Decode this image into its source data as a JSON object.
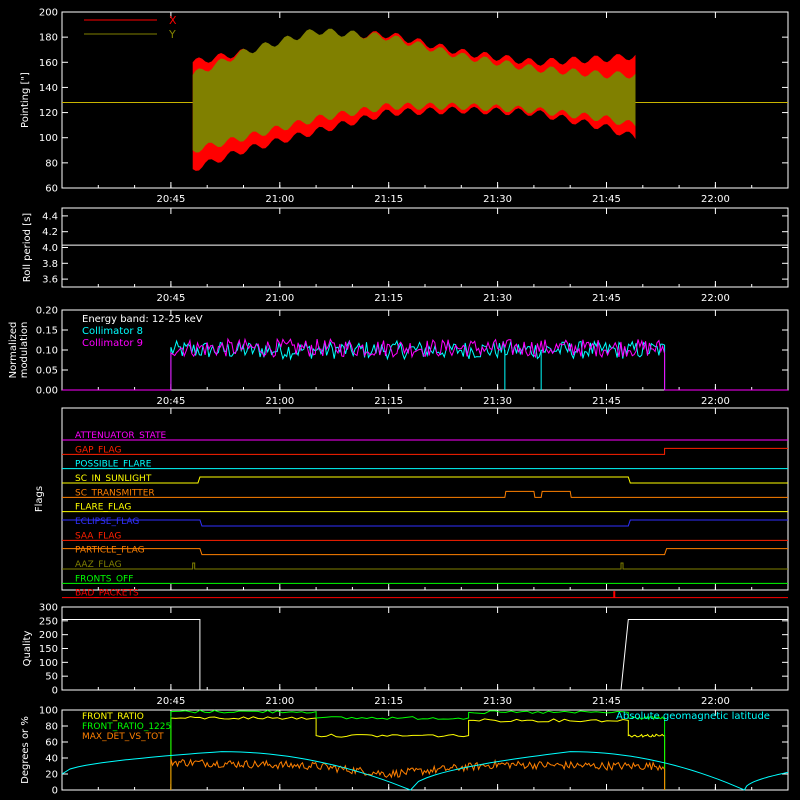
{
  "chart_data": [
    {
      "type": "area",
      "ylabel": "Pointing [\"]",
      "ylim": [
        60,
        200
      ],
      "yticks": [
        60,
        80,
        100,
        120,
        140,
        160,
        180,
        200
      ],
      "xticks": [
        "20:45",
        "21:00",
        "21:15",
        "21:30",
        "21:45",
        "22:00"
      ],
      "xlim": [
        "20:30",
        "22:10"
      ],
      "legend": "top-left",
      "series": [
        {
          "name": "X",
          "color": "#ff0000",
          "x": [
            "20:48",
            "20:55",
            "21:05",
            "21:15",
            "21:25",
            "21:35",
            "21:45",
            "21:49"
          ],
          "upper": [
            160,
            168,
            182,
            182,
            168,
            160,
            163,
            165
          ],
          "lower": [
            75,
            90,
            105,
            120,
            122,
            120,
            108,
            100
          ]
        },
        {
          "name": "Y",
          "color": "#808000",
          "x": [
            "20:48",
            "20:55",
            "21:05",
            "21:15",
            "21:25",
            "21:35",
            "21:45",
            "21:49"
          ],
          "upper": [
            150,
            168,
            185,
            180,
            165,
            155,
            150,
            150
          ],
          "lower": [
            90,
            100,
            115,
            125,
            125,
            122,
            115,
            110
          ]
        }
      ],
      "baseline": {
        "value": 128,
        "color": "#c8b400"
      }
    },
    {
      "type": "line",
      "ylabel": "Roll period [s]",
      "ylim": [
        3.5,
        4.5
      ],
      "yticks": [
        3.6,
        3.8,
        4.0,
        4.2,
        4.4
      ],
      "xticks": [
        "20:45",
        "21:00",
        "21:15",
        "21:30",
        "21:45",
        "22:00"
      ],
      "series": [
        {
          "name": "",
          "color": "#ffffff",
          "x": [
            "20:30",
            "22:10"
          ],
          "values": [
            4.03,
            4.03
          ]
        }
      ]
    },
    {
      "type": "line",
      "ylabel": "Normalized modulation",
      "ylim": [
        0,
        0.2
      ],
      "yticks": [
        0.0,
        0.05,
        0.1,
        0.15,
        0.2
      ],
      "xticks": [
        "20:45",
        "21:00",
        "21:15",
        "21:30",
        "21:45",
        "22:00"
      ],
      "annotation": "Energy band: 12-25 keV",
      "series": [
        {
          "name": "Collimator 8",
          "color": "#00ffff",
          "x": [
            "20:30",
            "20:45",
            "20:45",
            "21:53",
            "21:53",
            "22:10"
          ],
          "values": [
            0,
            0,
            0.1,
            0.1,
            0,
            0
          ]
        },
        {
          "name": "Collimator 9",
          "color": "#ff00ff",
          "x": [
            "20:30",
            "20:45",
            "20:45",
            "21:53",
            "21:53",
            "22:10"
          ],
          "values": [
            0,
            0,
            0.105,
            0.105,
            0,
            0
          ]
        }
      ]
    },
    {
      "type": "line",
      "ylabel": "Flags",
      "xticks": [
        "20:45",
        "21:00",
        "21:15",
        "21:30",
        "21:45",
        "22:00"
      ],
      "series": [
        {
          "name": "ATTENUATOR_STATE",
          "color": "#ff00ff"
        },
        {
          "name": "GAP_FLAG",
          "color": "#ff2000"
        },
        {
          "name": "POSSIBLE_FLARE",
          "color": "#00ffff"
        },
        {
          "name": "SC_IN_SUNLIGHT",
          "color": "#ffff00"
        },
        {
          "name": "SC_TRANSMITTER",
          "color": "#ff8000"
        },
        {
          "name": "FLARE_FLAG",
          "color": "#ffff00"
        },
        {
          "name": "ECLIPSE_FLAG",
          "color": "#3030ff"
        },
        {
          "name": "SAA_FLAG",
          "color": "#ff2000"
        },
        {
          "name": "PARTICLE_FLAG",
          "color": "#ff8000"
        },
        {
          "name": "AAZ_FLAG",
          "color": "#808000"
        },
        {
          "name": "FRONTS_OFF",
          "color": "#00ff00"
        },
        {
          "name": "BAD_PACKETS",
          "color": "#ff0000"
        }
      ]
    },
    {
      "type": "line",
      "ylabel": "Quality",
      "ylim": [
        0,
        300
      ],
      "yticks": [
        0,
        50,
        100,
        150,
        200,
        250,
        300
      ],
      "xticks": [
        "20:45",
        "21:00",
        "21:15",
        "21:30",
        "21:45",
        "22:00"
      ],
      "series": [
        {
          "name": "",
          "color": "#ffffff",
          "x": [
            "20:30",
            "20:49",
            "20:49",
            "21:47",
            "21:48",
            "22:10"
          ],
          "values": [
            255,
            255,
            0,
            0,
            255,
            255
          ]
        }
      ]
    },
    {
      "type": "line",
      "ylabel": "Degrees or %",
      "ylim": [
        0,
        100
      ],
      "yticks": [
        0,
        20,
        40,
        60,
        80,
        100
      ],
      "xticks": [
        "20:45",
        "21:00",
        "21:15",
        "21:30",
        "21:45",
        "22:00"
      ],
      "series": [
        {
          "name": "FRONT_RATIO",
          "color": "#ffff00",
          "x": [
            "20:45",
            "21:05",
            "21:05",
            "21:26",
            "21:26",
            "21:48",
            "21:48",
            "21:53"
          ],
          "values": [
            90,
            90,
            68,
            68,
            87,
            87,
            68,
            68
          ]
        },
        {
          "name": "FRONT_RATIO_1225",
          "color": "#00ff00",
          "x": [
            "20:45",
            "21:05",
            "21:05",
            "21:26",
            "21:26",
            "21:48",
            "21:48",
            "21:53"
          ],
          "values": [
            98,
            98,
            90,
            90,
            97,
            97,
            90,
            90
          ]
        },
        {
          "name": "MAX_DET_VS_TOT",
          "color": "#ff8000",
          "x": [
            "20:45",
            "21:05",
            "21:15",
            "21:30",
            "21:45",
            "21:53"
          ],
          "values": [
            35,
            30,
            20,
            32,
            30,
            30
          ]
        },
        {
          "name": "Absolute geomagnetic latitude",
          "color": "#00ffff",
          "x": [
            "20:30",
            "20:52",
            "21:18",
            "21:40",
            "22:04",
            "22:10"
          ],
          "values": [
            20,
            48,
            0,
            48,
            0,
            22
          ]
        }
      ]
    }
  ]
}
